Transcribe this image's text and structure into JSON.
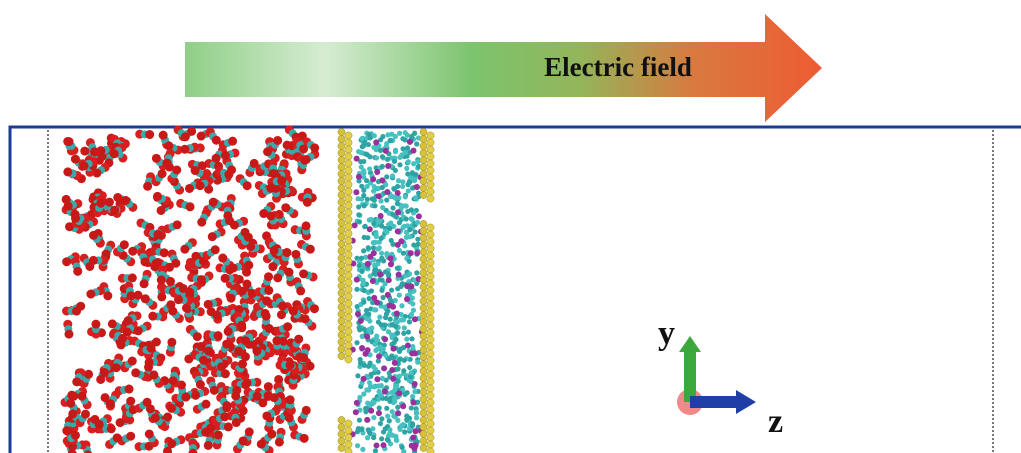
{
  "arrow_label": "Electric field",
  "axes": {
    "y_label": "y",
    "z_label": "z"
  }
}
